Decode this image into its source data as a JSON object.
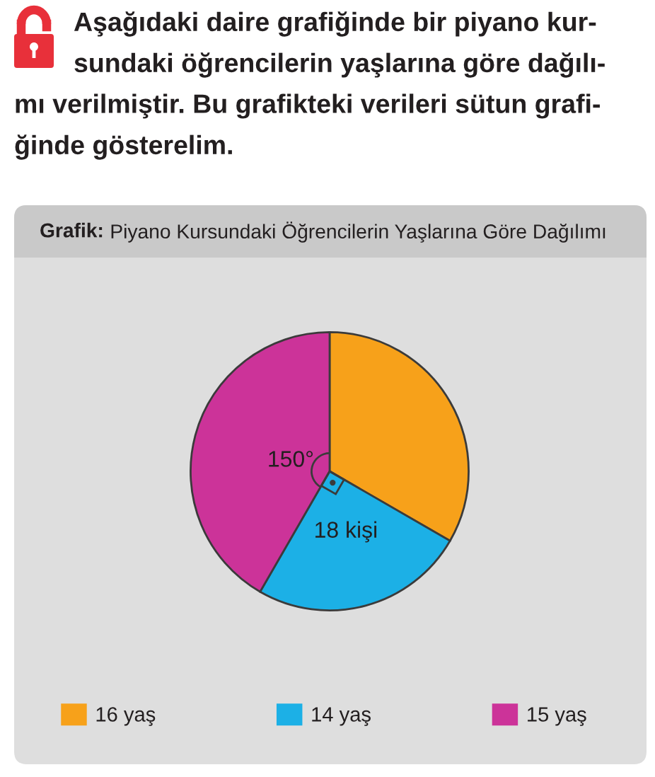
{
  "chart_data": {
    "type": "pie",
    "title": "Grafik: Piyano Kursundaki Öğrencilerin Yaşlarına Göre Dağılımı",
    "categories": [
      "16 yaş",
      "14 yaş",
      "15 yaş"
    ],
    "values": [
      24,
      18,
      30
    ],
    "colors": [
      "#f7a11a",
      "#1cb0e6",
      "#cc3399"
    ],
    "value_labels": [
      null,
      "18 kişi",
      null
    ],
    "annotations": [
      "Aşağıdaki daire grafiğinde bir piyano kur-\nsundaki öğrencilerin yaşlarına göre dağılı-\nmı verilmiştir. Bu grafikteki verileri sütun grafi-\nğinde gösterelim.",
      {
        "text": "150°",
        "x": "15 yaş"
      }
    ],
    "legend": "bottom"
  }
}
